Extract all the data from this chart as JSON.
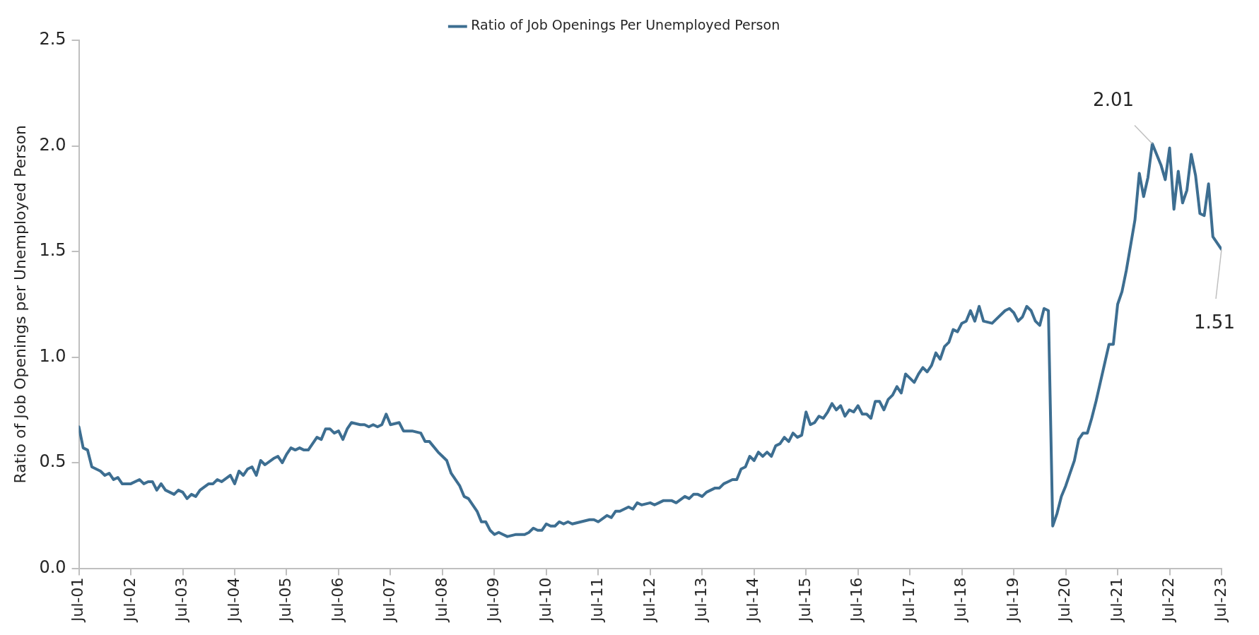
{
  "chart_data": {
    "type": "line",
    "ylabel": "Ratio of Job Openings per Unemployed Person",
    "x": [
      "2001-07",
      "2001-08",
      "2001-09",
      "2001-10",
      "2001-12",
      "2002-01",
      "2002-02",
      "2002-03",
      "2002-04",
      "2002-05",
      "2002-07",
      "2002-09",
      "2002-10",
      "2002-11",
      "2002-12",
      "2003-01",
      "2003-02",
      "2003-03",
      "2003-05",
      "2003-06",
      "2003-07",
      "2003-08",
      "2003-09",
      "2003-10",
      "2003-11",
      "2004-01",
      "2004-02",
      "2004-03",
      "2004-04",
      "2004-06",
      "2004-07",
      "2004-08",
      "2004-09",
      "2004-10",
      "2004-11",
      "2004-12",
      "2005-01",
      "2005-02",
      "2005-04",
      "2005-05",
      "2005-06",
      "2005-07",
      "2005-08",
      "2005-09",
      "2005-10",
      "2005-11",
      "2005-12",
      "2006-02",
      "2006-03",
      "2006-04",
      "2006-05",
      "2006-06",
      "2006-07",
      "2006-08",
      "2006-09",
      "2006-10",
      "2006-12",
      "2007-01",
      "2007-02",
      "2007-03",
      "2007-04",
      "2007-05",
      "2007-06",
      "2007-07",
      "2007-09",
      "2007-10",
      "2007-12",
      "2008-02",
      "2008-03",
      "2008-04",
      "2008-06",
      "2008-07",
      "2008-08",
      "2008-09",
      "2008-10",
      "2008-11",
      "2008-12",
      "2009-01",
      "2009-03",
      "2009-04",
      "2009-05",
      "2009-06",
      "2009-07",
      "2009-08",
      "2009-09",
      "2009-10",
      "2009-12",
      "2010-02",
      "2010-03",
      "2010-04",
      "2010-05",
      "2010-06",
      "2010-07",
      "2010-08",
      "2010-09",
      "2010-10",
      "2010-11",
      "2010-12",
      "2011-01",
      "2011-03",
      "2011-05",
      "2011-06",
      "2011-07",
      "2011-09",
      "2011-10",
      "2011-11",
      "2011-12",
      "2012-01",
      "2012-02",
      "2012-03",
      "2012-04",
      "2012-05",
      "2012-07",
      "2012-08",
      "2012-09",
      "2012-10",
      "2012-11",
      "2012-12",
      "2013-01",
      "2013-03",
      "2013-04",
      "2013-05",
      "2013-06",
      "2013-07",
      "2013-08",
      "2013-09",
      "2013-10",
      "2013-11",
      "2013-12",
      "2014-01",
      "2014-02",
      "2014-03",
      "2014-04",
      "2014-05",
      "2014-06",
      "2014-07",
      "2014-08",
      "2014-09",
      "2014-10",
      "2014-11",
      "2014-12",
      "2015-01",
      "2015-02",
      "2015-03",
      "2015-04",
      "2015-05",
      "2015-06",
      "2015-07",
      "2015-08",
      "2015-09",
      "2015-10",
      "2015-11",
      "2015-12",
      "2016-01",
      "2016-02",
      "2016-03",
      "2016-04",
      "2016-05",
      "2016-06",
      "2016-07",
      "2016-08",
      "2016-09",
      "2016-10",
      "2016-11",
      "2016-12",
      "2017-01",
      "2017-02",
      "2017-03",
      "2017-04",
      "2017-05",
      "2017-06",
      "2017-07",
      "2017-08",
      "2017-09",
      "2017-10",
      "2017-11",
      "2017-12",
      "2018-01",
      "2018-02",
      "2018-03",
      "2018-04",
      "2018-05",
      "2018-06",
      "2018-07",
      "2018-08",
      "2018-09",
      "2018-10",
      "2018-11",
      "2018-12",
      "2019-02",
      "2019-03",
      "2019-05",
      "2019-06",
      "2019-07",
      "2019-08",
      "2019-09",
      "2019-10",
      "2019-11",
      "2019-12",
      "2020-01",
      "2020-02",
      "2020-03",
      "2020-04",
      "2020-05",
      "2020-06",
      "2020-07",
      "2020-08",
      "2020-09",
      "2020-10",
      "2020-11",
      "2020-12",
      "2021-01",
      "2021-02",
      "2021-03",
      "2021-04",
      "2021-05",
      "2021-06",
      "2021-07",
      "2021-08",
      "2021-09",
      "2021-10",
      "2021-11",
      "2021-12",
      "2022-01",
      "2022-02",
      "2022-03",
      "2022-04",
      "2022-05",
      "2022-06",
      "2022-07",
      "2022-08",
      "2022-09",
      "2022-10",
      "2022-11",
      "2022-12",
      "2023-01",
      "2023-02",
      "2023-03",
      "2023-04",
      "2023-05",
      "2023-06",
      "2023-07"
    ],
    "series": [
      {
        "name": "Ratio of Job Openings Per Unemployed Person",
        "color": "#3d6e91",
        "values": [
          0.67,
          0.57,
          0.56,
          0.48,
          0.46,
          0.44,
          0.45,
          0.42,
          0.43,
          0.4,
          0.4,
          0.42,
          0.4,
          0.41,
          0.41,
          0.37,
          0.4,
          0.37,
          0.35,
          0.37,
          0.36,
          0.33,
          0.35,
          0.34,
          0.37,
          0.4,
          0.4,
          0.42,
          0.41,
          0.44,
          0.4,
          0.46,
          0.44,
          0.47,
          0.48,
          0.44,
          0.51,
          0.49,
          0.52,
          0.53,
          0.5,
          0.54,
          0.57,
          0.56,
          0.57,
          0.56,
          0.56,
          0.62,
          0.61,
          0.66,
          0.66,
          0.64,
          0.65,
          0.61,
          0.66,
          0.69,
          0.68,
          0.68,
          0.67,
          0.68,
          0.67,
          0.68,
          0.73,
          0.68,
          0.69,
          0.65,
          0.65,
          0.64,
          0.6,
          0.6,
          0.55,
          0.53,
          0.51,
          0.45,
          0.42,
          0.39,
          0.34,
          0.33,
          0.27,
          0.22,
          0.22,
          0.18,
          0.16,
          0.17,
          0.16,
          0.15,
          0.16,
          0.16,
          0.17,
          0.19,
          0.18,
          0.18,
          0.21,
          0.2,
          0.2,
          0.22,
          0.21,
          0.22,
          0.21,
          0.22,
          0.23,
          0.23,
          0.22,
          0.25,
          0.24,
          0.27,
          0.27,
          0.28,
          0.29,
          0.28,
          0.31,
          0.3,
          0.31,
          0.3,
          0.31,
          0.32,
          0.32,
          0.32,
          0.31,
          0.34,
          0.33,
          0.35,
          0.35,
          0.34,
          0.36,
          0.37,
          0.38,
          0.38,
          0.4,
          0.41,
          0.42,
          0.42,
          0.47,
          0.48,
          0.53,
          0.51,
          0.55,
          0.53,
          0.55,
          0.53,
          0.58,
          0.59,
          0.62,
          0.6,
          0.64,
          0.62,
          0.63,
          0.74,
          0.68,
          0.69,
          0.72,
          0.71,
          0.74,
          0.78,
          0.75,
          0.77,
          0.72,
          0.75,
          0.74,
          0.77,
          0.73,
          0.73,
          0.71,
          0.79,
          0.79,
          0.75,
          0.8,
          0.82,
          0.86,
          0.83,
          0.92,
          0.9,
          0.88,
          0.92,
          0.95,
          0.93,
          0.96,
          1.02,
          0.99,
          1.05,
          1.07,
          1.13,
          1.12,
          1.16,
          1.17,
          1.22,
          1.17,
          1.24,
          1.17,
          1.16,
          1.18,
          1.22,
          1.23,
          1.21,
          1.17,
          1.19,
          1.24,
          1.22,
          1.17,
          1.15,
          1.23,
          1.22,
          0.2,
          0.26,
          0.34,
          0.39,
          0.45,
          0.51,
          0.61,
          0.64,
          0.64,
          0.71,
          0.79,
          0.88,
          0.97,
          1.06,
          1.06,
          1.25,
          1.31,
          1.41,
          1.53,
          1.65,
          1.87,
          1.76,
          1.85,
          2.01,
          1.96,
          1.91,
          1.84,
          1.99,
          1.7,
          1.88,
          1.73,
          1.79,
          1.96,
          1.86,
          1.68,
          1.67,
          1.82,
          1.57,
          1.54,
          1.51
        ]
      }
    ],
    "xlim": [
      "2001-07",
      "2023-07"
    ],
    "xticks": [
      {
        "value": "2001-07",
        "label": "Jul-01"
      },
      {
        "value": "2002-07",
        "label": "Jul-02"
      },
      {
        "value": "2003-07",
        "label": "Jul-03"
      },
      {
        "value": "2004-07",
        "label": "Jul-04"
      },
      {
        "value": "2005-07",
        "label": "Jul-05"
      },
      {
        "value": "2006-07",
        "label": "Jul-06"
      },
      {
        "value": "2007-07",
        "label": "Jul-07"
      },
      {
        "value": "2008-07",
        "label": "Jul-08"
      },
      {
        "value": "2009-07",
        "label": "Jul-09"
      },
      {
        "value": "2010-07",
        "label": "Jul-10"
      },
      {
        "value": "2011-07",
        "label": "Jul-11"
      },
      {
        "value": "2012-07",
        "label": "Jul-12"
      },
      {
        "value": "2013-07",
        "label": "Jul-13"
      },
      {
        "value": "2014-07",
        "label": "Jul-14"
      },
      {
        "value": "2015-07",
        "label": "Jul-15"
      },
      {
        "value": "2016-07",
        "label": "Jul-16"
      },
      {
        "value": "2017-07",
        "label": "Jul-17"
      },
      {
        "value": "2018-07",
        "label": "Jul-18"
      },
      {
        "value": "2019-07",
        "label": "Jul-19"
      },
      {
        "value": "2020-07",
        "label": "Jul-20"
      },
      {
        "value": "2021-07",
        "label": "Jul-21"
      },
      {
        "value": "2022-07",
        "label": "Jul-22"
      },
      {
        "value": "2023-07",
        "label": "Jul-23"
      }
    ],
    "ylim": [
      0,
      2.5
    ],
    "yticks": [
      {
        "value": 0,
        "label": "0.0"
      },
      {
        "value": 0.5,
        "label": "0.5"
      },
      {
        "value": 1,
        "label": "1.0"
      },
      {
        "value": 1.5,
        "label": "1.5"
      },
      {
        "value": 2,
        "label": "2.0"
      },
      {
        "value": 2.5,
        "label": "2.5"
      }
    ],
    "annotations": [
      {
        "text": "2.01",
        "x": "2022-03",
        "y": 2.01
      },
      {
        "text": "1.51",
        "x": "2023-07",
        "y": 1.51
      }
    ],
    "grid": false,
    "legend": "top",
    "marker": "none",
    "line_style": "solid"
  }
}
